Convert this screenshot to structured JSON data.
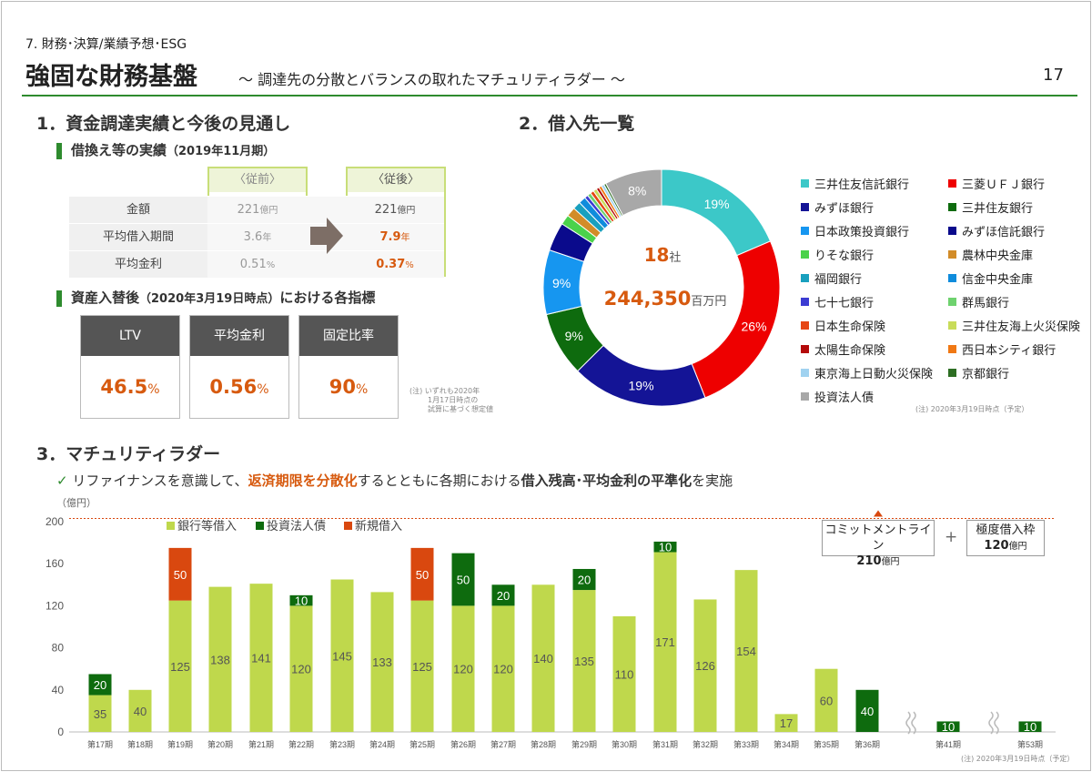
{
  "header": {
    "section_label": "7. 財務･決算/業績予想･ESG",
    "title": "強固な財務基盤",
    "subtitle": "～ 調達先の分散とバランスの取れたマチュリティラダー ～",
    "page_number": "17"
  },
  "section1": {
    "title": "1．資金調達実績と今後の見通し",
    "sub1_title": "借換え等の実績",
    "sub1_period": "（2019年11月期）",
    "col_before": "〈従前〉",
    "col_after": "〈従後〉",
    "rows": [
      {
        "label": "金額",
        "before": "221",
        "before_unit": "億円",
        "after": "221",
        "after_unit": "億円"
      },
      {
        "label": "平均借入期間",
        "before": "3.6",
        "before_unit": "年",
        "after": "7.9",
        "after_unit": "年"
      },
      {
        "label": "平均金利",
        "before": "0.51",
        "before_unit": "%",
        "after": "0.37",
        "after_unit": "%"
      }
    ],
    "sub2_title": "資産入替後",
    "sub2_period": "（2020年3月19日時点）",
    "sub2_suffix": "における各指標",
    "indicators": [
      {
        "label": "LTV",
        "value": "46.5",
        "unit": "%"
      },
      {
        "label": "平均金利",
        "value": "0.56",
        "unit": "%"
      },
      {
        "label": "固定比率",
        "value": "90",
        "unit": "%"
      }
    ],
    "note_line1": "(注) いずれも2020年",
    "note_line2": "1月17日時点の",
    "note_line3": "試算に基づく想定値"
  },
  "section2": {
    "title": "2．借入先一覧",
    "center_count": "18",
    "center_count_unit": "社",
    "center_amount": "244,350",
    "center_amount_unit": "百万円",
    "note": "(注) 2020年3月19日時点（予定）",
    "lenders": [
      {
        "name": "三井住友信託銀行",
        "share": 19,
        "label": "19%",
        "color": "#3cc8c8"
      },
      {
        "name": "三菱ＵＦＪ銀行",
        "share": 26,
        "label": "26%",
        "color": "#ee0000"
      },
      {
        "name": "みずほ銀行",
        "share": 19,
        "label": "19%",
        "color": "#141496"
      },
      {
        "name": "三井住友銀行",
        "share": 9,
        "label": "9%",
        "color": "#0e6b0e"
      },
      {
        "name": "日本政策投資銀行",
        "share": 9,
        "label": "9%",
        "color": "#1696f0"
      },
      {
        "name": "みずほ信託銀行",
        "share": 4,
        "label": "",
        "color": "#0a0a8c"
      },
      {
        "name": "りそな銀行",
        "share": 1.4,
        "label": "",
        "color": "#4bd24b"
      },
      {
        "name": "農林中央金庫",
        "share": 1.3,
        "label": "",
        "color": "#d28c28"
      },
      {
        "name": "福岡銀行",
        "share": 1.1,
        "label": "",
        "color": "#19a0be"
      },
      {
        "name": "信金中央金庫",
        "share": 1.0,
        "label": "",
        "color": "#0f8cdc"
      },
      {
        "name": "七十七銀行",
        "share": 0.5,
        "label": "",
        "color": "#3c3cd2"
      },
      {
        "name": "群馬銀行",
        "share": 0.5,
        "label": "",
        "color": "#6ed26e"
      },
      {
        "name": "日本生命保険",
        "share": 0.5,
        "label": "",
        "color": "#e64614"
      },
      {
        "name": "三井住友海上火災保険",
        "share": 0.5,
        "label": "",
        "color": "#c8dc5a"
      },
      {
        "name": "太陽生命保険",
        "share": 0.4,
        "label": "",
        "color": "#b40a0a"
      },
      {
        "name": "西日本シティ銀行",
        "share": 0.4,
        "label": "",
        "color": "#f07814"
      },
      {
        "name": "東京海上日動火災保険",
        "share": 0.4,
        "label": "",
        "color": "#a0d2f0"
      },
      {
        "name": "京都銀行",
        "share": 0.3,
        "label": "",
        "color": "#2d6e23"
      },
      {
        "name": "投資法人債",
        "share": 8,
        "label": "8%",
        "color": "#a8a8a8"
      }
    ]
  },
  "section3": {
    "title": "3．マチュリティラダー",
    "desc_pre": "リファイナンスを意識して、",
    "desc_hl1": "返済期限を分散化",
    "desc_mid": "するとともに各期における",
    "desc_hl2": "借入残高･平均金利の平準化",
    "desc_post": "を実施",
    "check_icon": "✓",
    "unit_label": "（億円）",
    "commit_label": "コミットメントライン",
    "commit_value": "210",
    "commit_unit": "億円",
    "plus": "+",
    "limit_label": "極度借入枠",
    "limit_value": "120",
    "limit_unit": "億円",
    "note": "(注) 2020年3月19日時点（予定）"
  },
  "chart_data": {
    "type": "bar",
    "stacked": true,
    "ylabel": "（億円）",
    "ylim": [
      0,
      200
    ],
    "yticks": [
      0,
      40,
      80,
      120,
      160,
      200
    ],
    "categories": [
      "第17期",
      "第18期",
      "第19期",
      "第20期",
      "第21期",
      "第22期",
      "第23期",
      "第24期",
      "第25期",
      "第26期",
      "第27期",
      "第28期",
      "第29期",
      "第30期",
      "第31期",
      "第32期",
      "第33期",
      "第34期",
      "第35期",
      "第36期",
      "第41期",
      "第53期"
    ],
    "series": [
      {
        "name": "銀行等借入",
        "color": "#bfd84c",
        "values": [
          35,
          40,
          125,
          138,
          141,
          120,
          145,
          133,
          125,
          120,
          120,
          140,
          135,
          110,
          171,
          126,
          154,
          17,
          60,
          0,
          0,
          0
        ]
      },
      {
        "name": "投資法人債",
        "color": "#0e6b0e",
        "values": [
          20,
          0,
          0,
          0,
          0,
          10,
          0,
          0,
          0,
          50,
          20,
          0,
          20,
          0,
          10,
          0,
          0,
          0,
          0,
          40,
          10,
          10
        ]
      },
      {
        "name": "新規借入",
        "color": "#d9480f",
        "values": [
          0,
          0,
          50,
          0,
          0,
          0,
          0,
          0,
          50,
          0,
          0,
          0,
          0,
          0,
          0,
          0,
          0,
          0,
          0,
          0,
          0,
          0
        ]
      }
    ],
    "reference_line": 210,
    "legend": "top-left"
  }
}
